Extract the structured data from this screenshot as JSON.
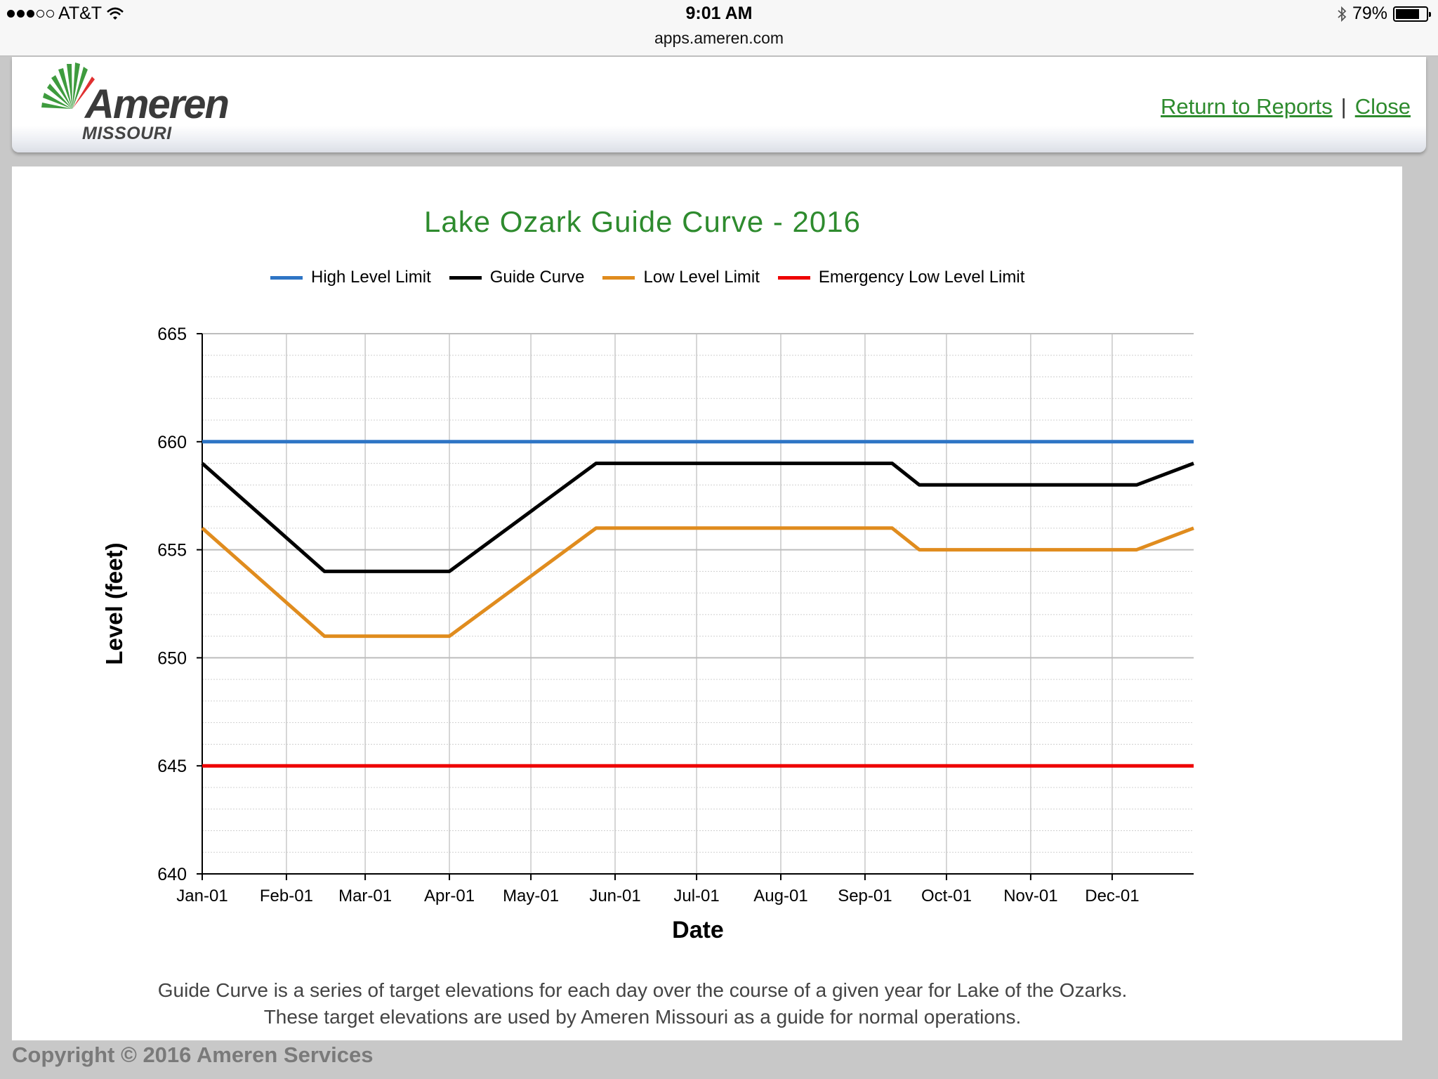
{
  "status_bar": {
    "carrier": "AT&T",
    "time": "9:01 AM",
    "url": "apps.ameren.com",
    "battery": "79%",
    "battery_level": 0.79
  },
  "header": {
    "logo_word": "Ameren",
    "logo_sub": "MISSOURI",
    "return_link": "Return to Reports",
    "separator": "|",
    "close_link": "Close"
  },
  "caption": {
    "line1": "Guide Curve is a series of target elevations for each day over the course of a given year for Lake of the Ozarks.",
    "line2": "These target elevations are used by Ameren Missouri as a guide for normal operations."
  },
  "footer": {
    "copyright": "Copyright © 2016 Ameren Services"
  },
  "chart_data": {
    "type": "line",
    "title": "Lake Ozark Guide Curve - 2016",
    "xlabel": "Date",
    "ylabel": "Level (feet)",
    "ylim": [
      640,
      665
    ],
    "yticks": [
      640,
      645,
      650,
      655,
      660,
      665
    ],
    "xlim": [
      "2016-01-01",
      "2016-12-31"
    ],
    "xticks": [
      "2016-01-01",
      "2016-02-01",
      "2016-03-01",
      "2016-04-01",
      "2016-05-01",
      "2016-06-01",
      "2016-07-01",
      "2016-08-01",
      "2016-09-01",
      "2016-10-01",
      "2016-11-01",
      "2016-12-01"
    ],
    "xtick_labels": [
      "Jan-01",
      "Feb-01",
      "Mar-01",
      "Apr-01",
      "May-01",
      "Jun-01",
      "Jul-01",
      "Aug-01",
      "Sep-01",
      "Oct-01",
      "Nov-01",
      "Dec-01"
    ],
    "grid": true,
    "legend": "top",
    "series": [
      {
        "name": "High Level Limit",
        "color": "#2e75c5",
        "x": [
          "2016-01-01",
          "2016-12-31"
        ],
        "y": [
          660,
          660
        ]
      },
      {
        "name": "Guide Curve",
        "color": "#000000",
        "x": [
          "2016-01-01",
          "2016-02-15",
          "2016-04-01",
          "2016-05-25",
          "2016-09-11",
          "2016-09-21",
          "2016-12-10",
          "2016-12-31"
        ],
        "y": [
          659,
          654,
          654,
          659,
          659,
          658,
          658,
          659
        ]
      },
      {
        "name": "Low Level Limit",
        "color": "#e08c1e",
        "x": [
          "2016-01-01",
          "2016-02-15",
          "2016-04-01",
          "2016-05-25",
          "2016-09-11",
          "2016-09-21",
          "2016-12-10",
          "2016-12-31"
        ],
        "y": [
          656,
          651,
          651,
          656,
          656,
          655,
          655,
          656
        ]
      },
      {
        "name": "Emergency Low Level Limit",
        "color": "#ee0000",
        "x": [
          "2016-01-01",
          "2016-12-31"
        ],
        "y": [
          645,
          645
        ]
      }
    ]
  }
}
